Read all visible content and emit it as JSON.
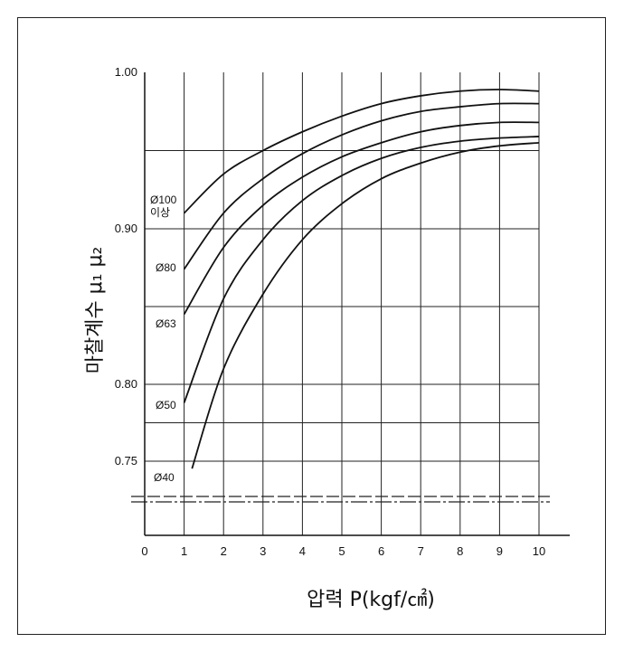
{
  "chart_data": {
    "type": "line",
    "xlabel": "압력 P(kgf/㎠)",
    "ylabel": "마찰계수 μ₁ μ₂",
    "xlim": [
      0,
      10
    ],
    "x_ticks": [
      "0",
      "1",
      "2",
      "3",
      "4",
      "5",
      "6",
      "7",
      "8",
      "9",
      "10"
    ],
    "y_ticks": [
      "1.00",
      "0.90",
      "0.80",
      "0.75"
    ],
    "grid": true,
    "series": [
      {
        "name": "Ø100 이상",
        "x": [
          1,
          2,
          3,
          4,
          5,
          6,
          7,
          8,
          9,
          10
        ],
        "y": [
          0.91,
          0.935,
          0.95,
          0.962,
          0.972,
          0.98,
          0.985,
          0.988,
          0.989,
          0.988
        ]
      },
      {
        "name": "Ø80",
        "x": [
          1,
          2,
          3,
          4,
          5,
          6,
          7,
          8,
          9,
          10
        ],
        "y": [
          0.874,
          0.91,
          0.932,
          0.948,
          0.96,
          0.969,
          0.975,
          0.978,
          0.98,
          0.98
        ]
      },
      {
        "name": "Ø63",
        "x": [
          1,
          2,
          3,
          4,
          5,
          6,
          7,
          8,
          9,
          10
        ],
        "y": [
          0.845,
          0.888,
          0.915,
          0.933,
          0.946,
          0.955,
          0.962,
          0.966,
          0.968,
          0.968
        ]
      },
      {
        "name": "Ø50",
        "x": [
          1,
          2,
          3,
          4,
          5,
          6,
          7,
          8,
          9,
          10
        ],
        "y": [
          0.788,
          0.855,
          0.893,
          0.918,
          0.934,
          0.945,
          0.952,
          0.956,
          0.958,
          0.959
        ]
      },
      {
        "name": "Ø40",
        "x": [
          1.2,
          2,
          3,
          4,
          5,
          6,
          7,
          8,
          9,
          10
        ],
        "y": [
          0.745,
          0.81,
          0.858,
          0.893,
          0.916,
          0.932,
          0.942,
          0.949,
          0.953,
          0.955
        ]
      }
    ]
  }
}
